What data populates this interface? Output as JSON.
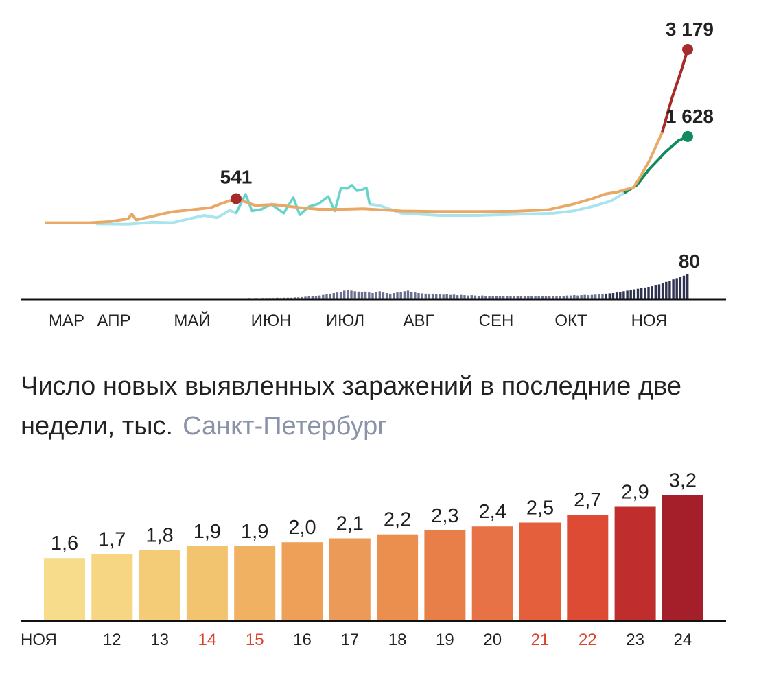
{
  "title": "Число новых выявленных заражений в последние две недели, тыс.",
  "subtitle": "Санкт-Петербург",
  "chart_data": [
    {
      "type": "line",
      "x_ticks": [
        "МАР",
        "АПР",
        "МАЙ",
        "ИЮН",
        "ИЮЛ",
        "АВГ",
        "СЕН",
        "ОКТ",
        "НОЯ"
      ],
      "series": [
        {
          "color": "#e8a866",
          "end_color": "#a52c2c",
          "points": [
            [
              0,
              90
            ],
            [
              70,
              90
            ],
            [
              100,
              110
            ],
            [
              130,
              160
            ],
            [
              136,
              245
            ],
            [
              143,
              140
            ],
            [
              160,
              185
            ],
            [
              185,
              250
            ],
            [
              200,
              285
            ],
            [
              230,
              320
            ],
            [
              260,
              360
            ],
            [
              275,
              425
            ],
            [
              300,
              520
            ],
            [
              330,
              400
            ],
            [
              360,
              415
            ],
            [
              400,
              360
            ],
            [
              430,
              330
            ],
            [
              470,
              330
            ],
            [
              500,
              340
            ],
            [
              560,
              300
            ],
            [
              620,
              290
            ],
            [
              680,
              290
            ],
            [
              740,
              295
            ],
            [
              790,
              320
            ],
            [
              830,
              420
            ],
            [
              860,
              520
            ],
            [
              880,
              600
            ],
            [
              900,
              640
            ],
            [
              925,
              720
            ],
            [
              935,
              900
            ],
            [
              950,
              1200
            ],
            [
              970,
              1700
            ],
            [
              985,
              2300
            ],
            [
              1000,
              2800
            ],
            [
              1010,
              3179
            ]
          ],
          "peak_label": "541",
          "peak_index": 12,
          "end_label": "3 179"
        },
        {
          "color": "#a8e4ee",
          "accent_color": "#4fcfba",
          "end_color": "#118a5e",
          "points": [
            [
              80,
              70
            ],
            [
              130,
              65
            ],
            [
              170,
              100
            ],
            [
              200,
              90
            ],
            [
              230,
              170
            ],
            [
              250,
              220
            ],
            [
              270,
              180
            ],
            [
              290,
              310
            ],
            [
              300,
              260
            ],
            [
              315,
              600
            ],
            [
              325,
              300
            ],
            [
              340,
              330
            ],
            [
              355,
              420
            ],
            [
              375,
              260
            ],
            [
              390,
              540
            ],
            [
              400,
              230
            ],
            [
              415,
              380
            ],
            [
              430,
              430
            ],
            [
              445,
              560
            ],
            [
              455,
              300
            ],
            [
              465,
              710
            ],
            [
              475,
              700
            ],
            [
              482,
              760
            ],
            [
              490,
              660
            ],
            [
              498,
              680
            ],
            [
              505,
              710
            ],
            [
              510,
              420
            ],
            [
              525,
              400
            ],
            [
              560,
              260
            ],
            [
              620,
              220
            ],
            [
              680,
              220
            ],
            [
              740,
              240
            ],
            [
              800,
              260
            ],
            [
              830,
              300
            ],
            [
              860,
              380
            ],
            [
              890,
              480
            ],
            [
              910,
              620
            ],
            [
              930,
              760
            ],
            [
              950,
              1050
            ],
            [
              975,
              1350
            ],
            [
              995,
              1550
            ],
            [
              1010,
              1628
            ]
          ],
          "end_label": "1 628"
        }
      ],
      "bars_label": "80",
      "bars": [
        0,
        0,
        0,
        0,
        0,
        0,
        0,
        0,
        0,
        0,
        0,
        0,
        0,
        0,
        0,
        0,
        0,
        0,
        0,
        1,
        0,
        0,
        0,
        1,
        0,
        0,
        0,
        0,
        0,
        0,
        0,
        0,
        1,
        1,
        1,
        2,
        1,
        2,
        1,
        2,
        2,
        2,
        2,
        2,
        2,
        3,
        2,
        3,
        2,
        3,
        3,
        4,
        3,
        4,
        3,
        4,
        4,
        4,
        4,
        5,
        4,
        5,
        5,
        5,
        6,
        6,
        7,
        8,
        9,
        10,
        11,
        12,
        14,
        16,
        18,
        20,
        22,
        24,
        28,
        30,
        28,
        26,
        25,
        23,
        25,
        22,
        20,
        24,
        26,
        22,
        20,
        18,
        20,
        22,
        24,
        26,
        28,
        24,
        22,
        20,
        19,
        18,
        17,
        18,
        16,
        17,
        15,
        16,
        14,
        15,
        13,
        14,
        13,
        12,
        13,
        12,
        11,
        12,
        11,
        10,
        11,
        10,
        10,
        9,
        10,
        10,
        9,
        9,
        10,
        10,
        11,
        10,
        9,
        10,
        9,
        10,
        10,
        11,
        10,
        11,
        11,
        12,
        12,
        13,
        12,
        13,
        14,
        13,
        14,
        15,
        16,
        17,
        18,
        19,
        20,
        22,
        24,
        26,
        28,
        30,
        32,
        34,
        36,
        38,
        40,
        42,
        45,
        48,
        52,
        56,
        60,
        64,
        68,
        72,
        76,
        80
      ]
    },
    {
      "type": "bar",
      "categories": [
        "НОЯ",
        "12",
        "13",
        "14",
        "15",
        "16",
        "17",
        "18",
        "19",
        "20",
        "21",
        "22",
        "23",
        "24"
      ],
      "values": [
        1.6,
        1.7,
        1.8,
        1.9,
        1.9,
        2.0,
        2.1,
        2.2,
        2.3,
        2.4,
        2.5,
        2.7,
        2.9,
        3.2
      ],
      "value_labels": [
        "1,6",
        "1,7",
        "1,8",
        "1,9",
        "1,9",
        "2,0",
        "2,1",
        "2,2",
        "2,3",
        "2,4",
        "2,5",
        "2,7",
        "2,9",
        "3,2"
      ],
      "highlight_labels": [
        "14",
        "15",
        "21",
        "22"
      ],
      "bar_colors": [
        "#f7dc8c",
        "#f6d683",
        "#f4cb76",
        "#f2c46f",
        "#f0b163",
        "#ee9f58",
        "#ec9a58",
        "#eb8f4f",
        "#e97f48",
        "#e77245",
        "#e45f3b",
        "#dd4b34",
        "#bf2d2d",
        "#a51f2b"
      ],
      "label_color": "#1f1f1f",
      "highlight_color": "#d9432e"
    }
  ]
}
